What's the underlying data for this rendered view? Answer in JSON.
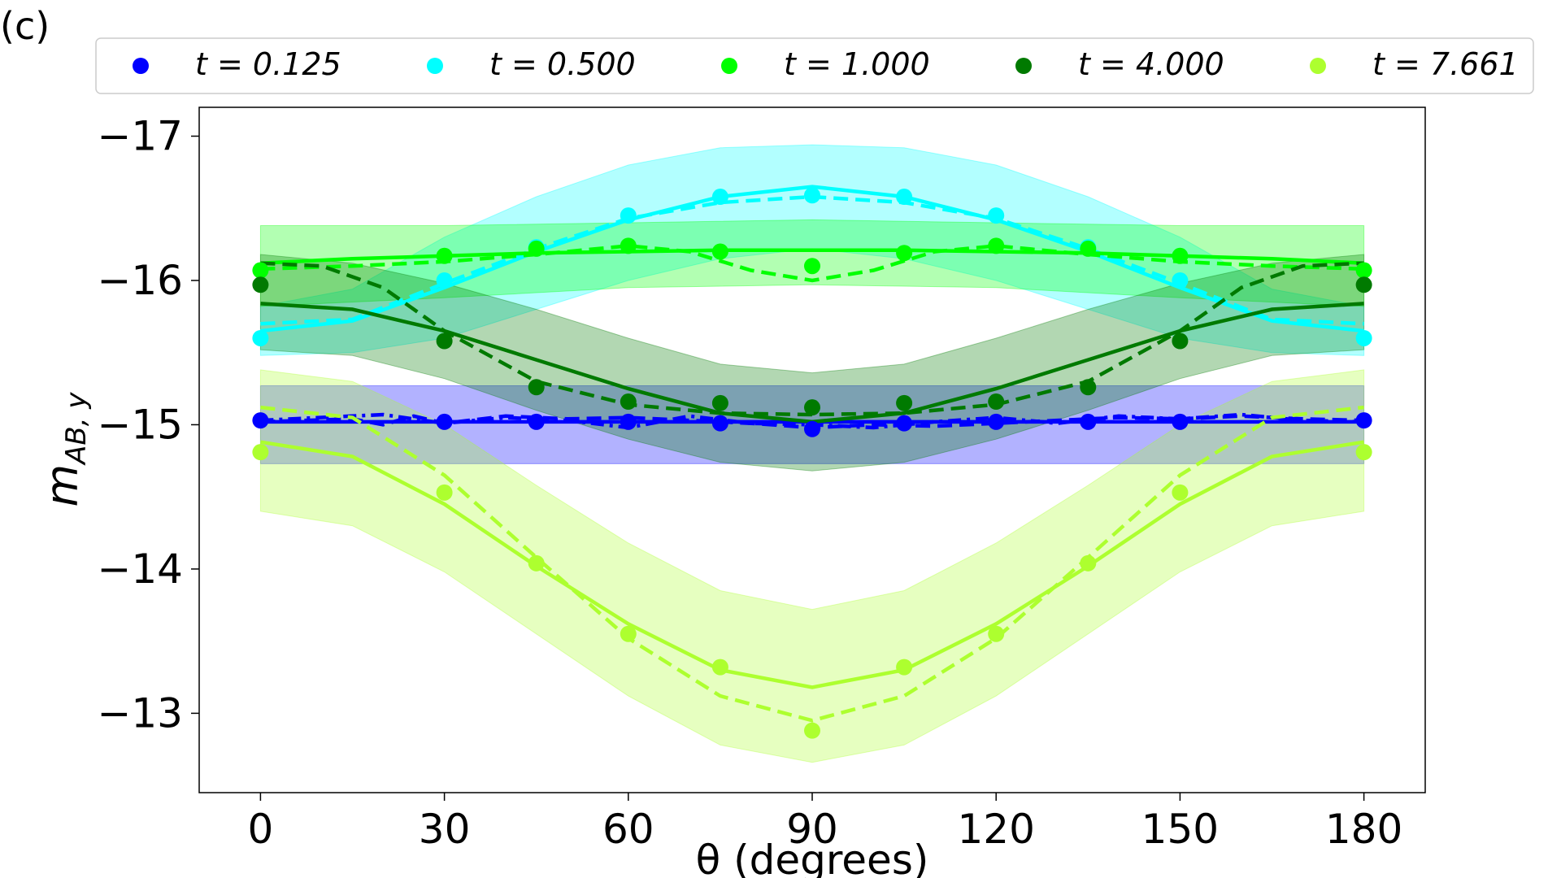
{
  "panel_label": "(c)",
  "colors": {
    "t_0_125": "#0000ff",
    "t_0_500": "#00ffff",
    "t_1_000": "#00ff00",
    "t_4_000": "#007a00",
    "t_7_661": "#adff2f"
  },
  "chart_data": {
    "type": "line",
    "title": "",
    "xlabel": "θ (degrees)",
    "ylabel_main": "m",
    "ylabel_sub": "AB, y",
    "xlim": [
      -10,
      190
    ],
    "ylim": [
      -12.45,
      -17.2
    ],
    "y_inverted": true,
    "grid": false,
    "legend_position": "top",
    "xticks": [
      0,
      30,
      60,
      90,
      120,
      150,
      180
    ],
    "xtick_labels": [
      "0",
      "30",
      "60",
      "90",
      "120",
      "150",
      "180"
    ],
    "yticks": [
      -17,
      -16,
      -15,
      -14,
      -13
    ],
    "ytick_labels": [
      "−17",
      "−16",
      "−15",
      "−14",
      "−13"
    ],
    "x": [
      0,
      30,
      45,
      60,
      75,
      90,
      105,
      120,
      135,
      150,
      180
    ],
    "series": [
      {
        "name": "t = 0.125",
        "color_key": "t_0_125",
        "points": [
          -15.03,
          -15.02,
          -15.02,
          -15.02,
          -15.01,
          -14.97,
          -15.01,
          -15.02,
          -15.02,
          -15.02,
          -15.03
        ],
        "solid": [
          [
            0,
            -15.02
          ],
          [
            180,
            -15.02
          ]
        ],
        "dashed": [
          [
            0,
            -15.02
          ],
          [
            15,
            -15.04
          ],
          [
            20,
            -15.0
          ],
          [
            25,
            -15.06
          ],
          [
            30,
            -15.01
          ],
          [
            40,
            -15.06
          ],
          [
            50,
            -15.04
          ],
          [
            60,
            -15.05
          ],
          [
            70,
            -15.03
          ],
          [
            80,
            -15.01
          ],
          [
            90,
            -14.98
          ],
          [
            100,
            -15.0
          ],
          [
            110,
            -14.99
          ],
          [
            120,
            -15.01
          ],
          [
            130,
            -15.03
          ],
          [
            140,
            -15.05
          ],
          [
            150,
            -15.04
          ],
          [
            160,
            -15.06
          ],
          [
            170,
            -15.04
          ],
          [
            180,
            -15.03
          ]
        ],
        "dashdot": [
          [
            0,
            -15.03
          ],
          [
            20,
            -15.07
          ],
          [
            30,
            -15.01
          ],
          [
            40,
            -15.05
          ],
          [
            50,
            -15.03
          ],
          [
            60,
            -14.98
          ],
          [
            70,
            -15.06
          ],
          [
            80,
            -15.01
          ],
          [
            90,
            -15.0
          ],
          [
            100,
            -14.98
          ],
          [
            110,
            -15.02
          ],
          [
            120,
            -15.05
          ],
          [
            130,
            -15.01
          ],
          [
            140,
            -15.06
          ],
          [
            150,
            -15.04
          ],
          [
            160,
            -15.07
          ],
          [
            170,
            -15.03
          ],
          [
            180,
            -15.02
          ]
        ],
        "band": [
          [
            0,
            -15.27,
            -14.73
          ],
          [
            180,
            -15.27,
            -14.73
          ]
        ]
      },
      {
        "name": "t = 0.500",
        "color_key": "t_0_500",
        "points": [
          -15.6,
          -16.0,
          -16.23,
          -16.45,
          -16.58,
          -16.59,
          -16.58,
          -16.45,
          -16.23,
          -16.0,
          -15.6
        ],
        "solid": [
          [
            0,
            -15.65
          ],
          [
            15,
            -15.72
          ],
          [
            30,
            -15.95
          ],
          [
            45,
            -16.2
          ],
          [
            60,
            -16.42
          ],
          [
            75,
            -16.58
          ],
          [
            90,
            -16.65
          ],
          [
            105,
            -16.58
          ],
          [
            120,
            -16.42
          ],
          [
            135,
            -16.2
          ],
          [
            150,
            -15.95
          ],
          [
            165,
            -15.72
          ],
          [
            180,
            -15.65
          ]
        ],
        "dashed": [
          [
            0,
            -15.7
          ],
          [
            15,
            -15.73
          ],
          [
            30,
            -15.98
          ],
          [
            45,
            -16.22
          ],
          [
            60,
            -16.43
          ],
          [
            75,
            -16.54
          ],
          [
            90,
            -16.58
          ],
          [
            105,
            -16.54
          ],
          [
            120,
            -16.43
          ],
          [
            135,
            -16.22
          ],
          [
            150,
            -15.98
          ],
          [
            165,
            -15.73
          ],
          [
            180,
            -15.7
          ]
        ],
        "band": [
          [
            0,
            -15.48,
            -15.82
          ],
          [
            15,
            -15.5,
            -15.94
          ],
          [
            30,
            -15.6,
            -16.3
          ],
          [
            45,
            -15.8,
            -16.58
          ],
          [
            60,
            -16.0,
            -16.8
          ],
          [
            75,
            -16.15,
            -16.92
          ],
          [
            90,
            -16.22,
            -16.94
          ],
          [
            105,
            -16.15,
            -16.92
          ],
          [
            120,
            -16.0,
            -16.8
          ],
          [
            135,
            -15.8,
            -16.58
          ],
          [
            150,
            -15.6,
            -16.3
          ],
          [
            165,
            -15.5,
            -15.94
          ],
          [
            180,
            -15.48,
            -15.82
          ]
        ]
      },
      {
        "name": "t = 1.000",
        "color_key": "t_1_000",
        "points": [
          -16.07,
          -16.17,
          -16.22,
          -16.24,
          -16.2,
          -16.1,
          -16.19,
          -16.24,
          -16.22,
          -16.17,
          -16.07
        ],
        "solid": [
          [
            0,
            -16.12
          ],
          [
            15,
            -16.15
          ],
          [
            30,
            -16.17
          ],
          [
            45,
            -16.19
          ],
          [
            60,
            -16.2
          ],
          [
            75,
            -16.21
          ],
          [
            90,
            -16.21
          ],
          [
            105,
            -16.21
          ],
          [
            120,
            -16.2
          ],
          [
            135,
            -16.19
          ],
          [
            150,
            -16.17
          ],
          [
            165,
            -16.15
          ],
          [
            180,
            -16.12
          ]
        ],
        "dashed": [
          [
            0,
            -16.08
          ],
          [
            15,
            -16.1
          ],
          [
            30,
            -16.13
          ],
          [
            45,
            -16.18
          ],
          [
            60,
            -16.24
          ],
          [
            70,
            -16.2
          ],
          [
            80,
            -16.07
          ],
          [
            90,
            -16.0
          ],
          [
            100,
            -16.07
          ],
          [
            110,
            -16.2
          ],
          [
            120,
            -16.24
          ],
          [
            135,
            -16.18
          ],
          [
            150,
            -16.13
          ],
          [
            165,
            -16.1
          ],
          [
            180,
            -16.08
          ]
        ],
        "band": [
          [
            0,
            -15.82,
            -16.38
          ],
          [
            30,
            -15.88,
            -16.38
          ],
          [
            60,
            -15.95,
            -16.4
          ],
          [
            90,
            -15.97,
            -16.42
          ],
          [
            120,
            -15.95,
            -16.4
          ],
          [
            150,
            -15.88,
            -16.38
          ],
          [
            180,
            -15.82,
            -16.38
          ]
        ]
      },
      {
        "name": "t = 4.000",
        "color_key": "t_4_000",
        "points": [
          -15.97,
          -15.58,
          -15.26,
          -15.16,
          -15.15,
          -15.12,
          -15.15,
          -15.16,
          -15.26,
          -15.58,
          -15.97
        ],
        "solid": [
          [
            0,
            -15.84
          ],
          [
            15,
            -15.8
          ],
          [
            30,
            -15.65
          ],
          [
            45,
            -15.45
          ],
          [
            60,
            -15.25
          ],
          [
            75,
            -15.08
          ],
          [
            90,
            -15.02
          ],
          [
            105,
            -15.08
          ],
          [
            120,
            -15.25
          ],
          [
            135,
            -15.45
          ],
          [
            150,
            -15.65
          ],
          [
            165,
            -15.8
          ],
          [
            180,
            -15.84
          ]
        ],
        "dashed": [
          [
            0,
            -16.12
          ],
          [
            10,
            -16.1
          ],
          [
            20,
            -15.95
          ],
          [
            30,
            -15.65
          ],
          [
            45,
            -15.3
          ],
          [
            60,
            -15.14
          ],
          [
            75,
            -15.08
          ],
          [
            90,
            -15.07
          ],
          [
            105,
            -15.08
          ],
          [
            120,
            -15.14
          ],
          [
            135,
            -15.3
          ],
          [
            150,
            -15.65
          ],
          [
            160,
            -15.95
          ],
          [
            170,
            -16.1
          ],
          [
            180,
            -16.12
          ]
        ],
        "band": [
          [
            0,
            -15.52,
            -16.18
          ],
          [
            15,
            -15.48,
            -16.12
          ],
          [
            30,
            -15.32,
            -15.98
          ],
          [
            45,
            -15.1,
            -15.8
          ],
          [
            60,
            -14.9,
            -15.6
          ],
          [
            75,
            -14.74,
            -15.42
          ],
          [
            90,
            -14.68,
            -15.36
          ],
          [
            105,
            -14.74,
            -15.42
          ],
          [
            120,
            -14.9,
            -15.6
          ],
          [
            135,
            -15.1,
            -15.8
          ],
          [
            150,
            -15.32,
            -15.98
          ],
          [
            165,
            -15.48,
            -16.12
          ],
          [
            180,
            -15.52,
            -16.18
          ]
        ]
      },
      {
        "name": "t = 7.661",
        "color_key": "t_7_661",
        "points": [
          -14.81,
          -14.53,
          -14.04,
          -13.55,
          -13.32,
          -12.88,
          -13.32,
          -13.55,
          -14.04,
          -14.53,
          -14.81
        ],
        "solid": [
          [
            0,
            -14.88
          ],
          [
            15,
            -14.78
          ],
          [
            30,
            -14.45
          ],
          [
            45,
            -14.02
          ],
          [
            60,
            -13.62
          ],
          [
            75,
            -13.3
          ],
          [
            90,
            -13.18
          ],
          [
            105,
            -13.3
          ],
          [
            120,
            -13.62
          ],
          [
            135,
            -14.02
          ],
          [
            150,
            -14.45
          ],
          [
            165,
            -14.78
          ],
          [
            180,
            -14.88
          ]
        ],
        "dashed": [
          [
            0,
            -15.12
          ],
          [
            15,
            -15.05
          ],
          [
            30,
            -14.65
          ],
          [
            45,
            -14.08
          ],
          [
            60,
            -13.52
          ],
          [
            75,
            -13.12
          ],
          [
            90,
            -12.95
          ],
          [
            105,
            -13.12
          ],
          [
            120,
            -13.52
          ],
          [
            135,
            -14.08
          ],
          [
            150,
            -14.65
          ],
          [
            165,
            -15.05
          ],
          [
            180,
            -15.12
          ]
        ],
        "band": [
          [
            0,
            -14.4,
            -15.38
          ],
          [
            15,
            -14.3,
            -15.3
          ],
          [
            30,
            -13.98,
            -15.0
          ],
          [
            45,
            -13.55,
            -14.58
          ],
          [
            60,
            -13.12,
            -14.18
          ],
          [
            75,
            -12.78,
            -13.85
          ],
          [
            90,
            -12.66,
            -13.72
          ],
          [
            105,
            -12.78,
            -13.85
          ],
          [
            120,
            -13.12,
            -14.18
          ],
          [
            135,
            -13.55,
            -14.58
          ],
          [
            150,
            -13.98,
            -15.0
          ],
          [
            165,
            -14.3,
            -15.3
          ],
          [
            180,
            -14.4,
            -15.38
          ]
        ]
      }
    ]
  }
}
